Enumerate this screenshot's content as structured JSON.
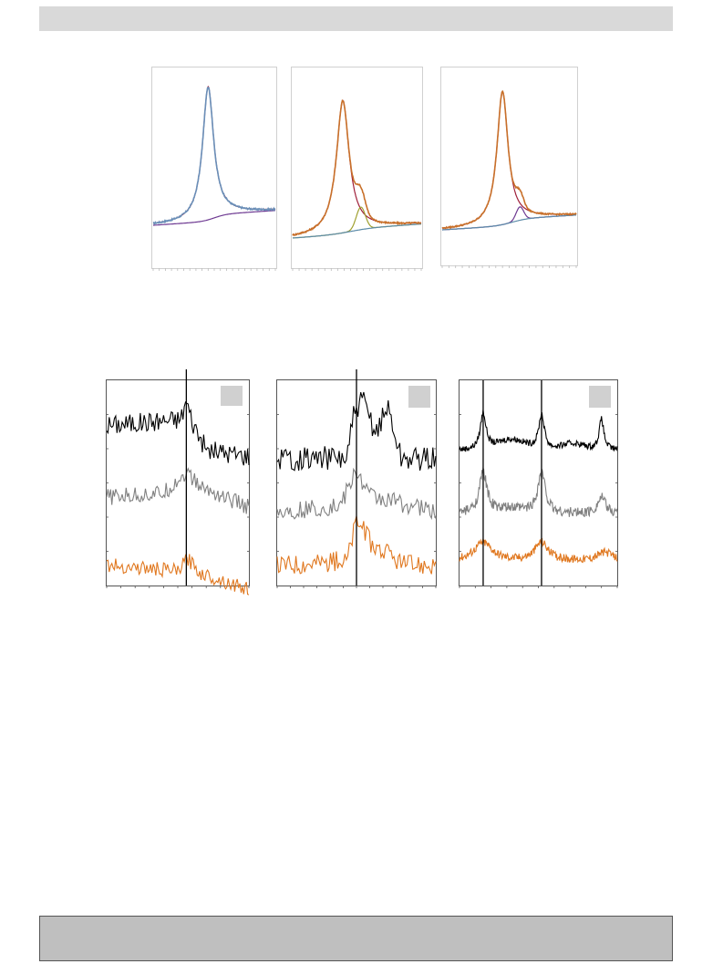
{
  "colors": {
    "header_bar": "#d9d9d9",
    "footer_bar": "#bfbfbf",
    "label_box": "#d0d0d0",
    "blue": "#6a8fb8",
    "red": "#a0203a",
    "purple": "#6e3a92",
    "orange": "#c8702a",
    "olive": "#a0a030",
    "teal": "#5a8aa8",
    "black": "#000000",
    "gray": "#808080",
    "orange_trace": "#e07820"
  },
  "chart_data": [
    {
      "id": "fit-a",
      "type": "line",
      "ylim": [
        -0.15,
        1.15
      ],
      "xlim": [
        0,
        100
      ],
      "ticks": 20,
      "components": [
        {
          "shape": "lorentz",
          "center": 45,
          "width": 5.5,
          "amp": 1.0,
          "slope": 0.0,
          "base": 0.0,
          "color": "red"
        },
        {
          "shape": "sigmoid",
          "center": 50,
          "width": 5,
          "amp": 0.05,
          "slope": 0.0002,
          "base": 0.0,
          "color": "purple"
        }
      ],
      "envelope": {
        "color": "blue",
        "noise": 0.006
      },
      "peak_height": 0.86
    },
    {
      "id": "fit-b",
      "type": "line",
      "ylim": [
        -0.1,
        1.15
      ],
      "xlim": [
        0,
        100
      ],
      "ticks": 20,
      "components": [
        {
          "shape": "lorentz",
          "center": 39,
          "width": 6,
          "amp": 1.0,
          "color": "red"
        },
        {
          "shape": "gauss",
          "center": 53,
          "width": 5,
          "amp": 0.17,
          "color": "olive"
        },
        {
          "shape": "sigmoid",
          "center": 45,
          "width": 9,
          "amp": 0.04,
          "slope": 0.00025,
          "base": 0.0,
          "color": "teal"
        }
      ],
      "envelope": {
        "color": "orange",
        "noise": 0.006
      },
      "peak_height": 0.86
    },
    {
      "id": "fit-c",
      "type": "line",
      "ylim": [
        -0.1,
        1.15
      ],
      "xlim": [
        0,
        100
      ],
      "ticks": 20,
      "components": [
        {
          "shape": "lorentz",
          "center": 45,
          "width": 5,
          "amp": 1.0,
          "color": "red"
        },
        {
          "shape": "gauss",
          "center": 58,
          "width": 4,
          "amp": 0.1,
          "color": "purple"
        },
        {
          "shape": "sigmoid",
          "center": 52,
          "width": 6,
          "amp": 0.05,
          "slope": 0.0002,
          "base": 0.0,
          "color": "teal"
        }
      ],
      "envelope": {
        "color": "orange",
        "noise": 0.005
      },
      "peak_height": 0.86
    },
    {
      "id": "trace-a",
      "type": "line",
      "xlim": [
        0,
        100
      ],
      "ticks": 10,
      "vlines": [
        56
      ],
      "series": [
        {
          "color": "black",
          "offset": 0.78,
          "noise": 0.05,
          "features": [
            [
              0,
              0.0
            ],
            [
              52,
              0.03
            ],
            [
              56,
              0.12
            ],
            [
              60,
              0.02
            ],
            [
              70,
              -0.12
            ],
            [
              100,
              -0.15
            ]
          ]
        },
        {
          "color": "gray",
          "offset": 0.43,
          "noise": 0.04,
          "features": [
            [
              0,
              0.0
            ],
            [
              40,
              0.02
            ],
            [
              56,
              0.12
            ],
            [
              66,
              0.05
            ],
            [
              100,
              -0.05
            ]
          ]
        },
        {
          "color": "orange_trace",
          "offset": 0.1,
          "noise": 0.035,
          "features": [
            [
              0,
              0.0
            ],
            [
              50,
              -0.03
            ],
            [
              57,
              0.03
            ],
            [
              66,
              -0.04
            ],
            [
              100,
              -0.12
            ]
          ]
        }
      ]
    },
    {
      "id": "trace-b",
      "type": "line",
      "xlim": [
        0,
        100
      ],
      "ticks": 12,
      "vlines": [
        50
      ],
      "series": [
        {
          "color": "black",
          "offset": 0.62,
          "noise": 0.06,
          "features": [
            [
              0,
              0.0
            ],
            [
              44,
              0.0
            ],
            [
              48,
              0.2
            ],
            [
              54,
              0.28
            ],
            [
              62,
              0.13
            ],
            [
              70,
              0.25
            ],
            [
              78,
              0.0
            ],
            [
              100,
              0.0
            ]
          ]
        },
        {
          "color": "gray",
          "offset": 0.36,
          "noise": 0.045,
          "features": [
            [
              0,
              0.0
            ],
            [
              40,
              0.03
            ],
            [
              50,
              0.2
            ],
            [
              58,
              0.08
            ],
            [
              100,
              0.0
            ]
          ]
        },
        {
          "color": "orange_trace",
          "offset": 0.1,
          "noise": 0.05,
          "features": [
            [
              0,
              0.0
            ],
            [
              44,
              0.02
            ],
            [
              50,
              0.22
            ],
            [
              60,
              0.1
            ],
            [
              80,
              0.0
            ],
            [
              100,
              0.0
            ]
          ]
        }
      ]
    },
    {
      "id": "trace-c",
      "type": "line",
      "xlim": [
        0,
        100
      ],
      "ticks": 10,
      "vlines": [
        15,
        52
      ],
      "series": [
        {
          "color": "black",
          "offset": 0.66,
          "noise": 0.015,
          "peaks": [
            [
              15,
              0.18,
              2.2
            ],
            [
              52,
              0.17,
              2.2
            ],
            [
              90,
              0.15,
              1.8
            ]
          ],
          "waves": [
            [
              33,
              0.05,
              12
            ],
            [
              72,
              0.03,
              10
            ]
          ]
        },
        {
          "color": "gray",
          "offset": 0.35,
          "noise": 0.025,
          "peaks": [
            [
              15,
              0.2,
              3
            ],
            [
              52,
              0.2,
              3
            ],
            [
              90,
              0.08,
              3
            ]
          ],
          "waves": [
            [
              33,
              0.02,
              12
            ],
            [
              72,
              0.0,
              10
            ]
          ]
        },
        {
          "color": "orange_trace",
          "offset": 0.12,
          "noise": 0.02,
          "peaks": [
            [
              15,
              0.09,
              7
            ],
            [
              52,
              0.09,
              5
            ],
            [
              92,
              0.04,
              6
            ]
          ],
          "waves": [
            [
              33,
              0.0,
              12
            ],
            [
              72,
              0.0,
              10
            ]
          ]
        }
      ]
    }
  ]
}
